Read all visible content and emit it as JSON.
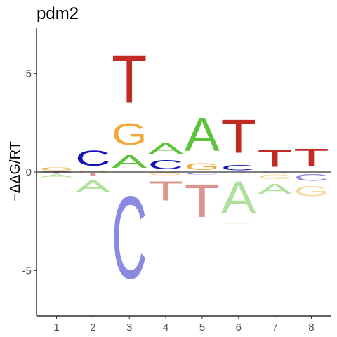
{
  "chart_data": {
    "type": "sequence-logo",
    "title": "pdm2",
    "xlabel": "",
    "ylabel": "−ΔΔG/RT",
    "x_ticks": [
      "1",
      "2",
      "3",
      "4",
      "5",
      "6",
      "7",
      "8"
    ],
    "y_ticks": [
      {
        "value": -5,
        "label": "-5"
      },
      {
        "value": 0,
        "label": "0"
      },
      {
        "value": 5,
        "label": "5"
      }
    ],
    "ylim": [
      -7.3,
      7.3
    ],
    "colors": {
      "A": {
        "positive": "#5cc33c",
        "negative": "#afe09d"
      },
      "C": {
        "positive": "#1414b9",
        "negative": "#8a8ae0"
      },
      "G": {
        "positive": "#f0a93a",
        "negative": "#f8d99c"
      },
      "T": {
        "positive": "#c22a22",
        "negative": "#dc9490"
      }
    },
    "positions": [
      {
        "pos": "1",
        "letters": [
          {
            "base": "T",
            "value": -0.1
          },
          {
            "base": "A",
            "value": -0.2
          },
          {
            "base": "C",
            "value": 0.05
          },
          {
            "base": "G",
            "value": 0.2
          }
        ]
      },
      {
        "pos": "2",
        "letters": [
          {
            "base": "T",
            "value": -0.25
          },
          {
            "base": "A",
            "value": -0.95
          },
          {
            "base": "G",
            "value": 0.07
          },
          {
            "base": "C",
            "value": 1.25
          }
        ]
      },
      {
        "pos": "3",
        "letters": [
          {
            "base": "C",
            "value": -6.7
          },
          {
            "base": "A",
            "value": 1.05
          },
          {
            "base": "G",
            "value": 1.75
          },
          {
            "base": "T",
            "value": 3.8
          }
        ]
      },
      {
        "pos": "4",
        "letters": [
          {
            "base": "G",
            "value": -0.2
          },
          {
            "base": "T",
            "value": -1.55
          },
          {
            "base": "C",
            "value": 0.75
          },
          {
            "base": "A",
            "value": 0.9
          }
        ]
      },
      {
        "pos": "5",
        "letters": [
          {
            "base": "C",
            "value": -0.15
          },
          {
            "base": "T",
            "value": -2.65
          },
          {
            "base": "G",
            "value": 0.55
          },
          {
            "base": "A",
            "value": 2.7
          }
        ]
      },
      {
        "pos": "6",
        "letters": [
          {
            "base": "A",
            "value": -2.6
          },
          {
            "base": "G",
            "value": -0.04
          },
          {
            "base": "C",
            "value": 0.45
          },
          {
            "base": "T",
            "value": 2.7
          }
        ]
      },
      {
        "pos": "7",
        "letters": [
          {
            "base": "C",
            "value": -0.08
          },
          {
            "base": "G",
            "value": -0.35
          },
          {
            "base": "A",
            "value": -0.85
          },
          {
            "base": "T",
            "value": 1.35
          }
        ]
      },
      {
        "pos": "8",
        "letters": [
          {
            "base": "C",
            "value": -0.55
          },
          {
            "base": "G",
            "value": -0.85
          },
          {
            "base": "T",
            "value": 1.45
          }
        ]
      }
    ]
  }
}
